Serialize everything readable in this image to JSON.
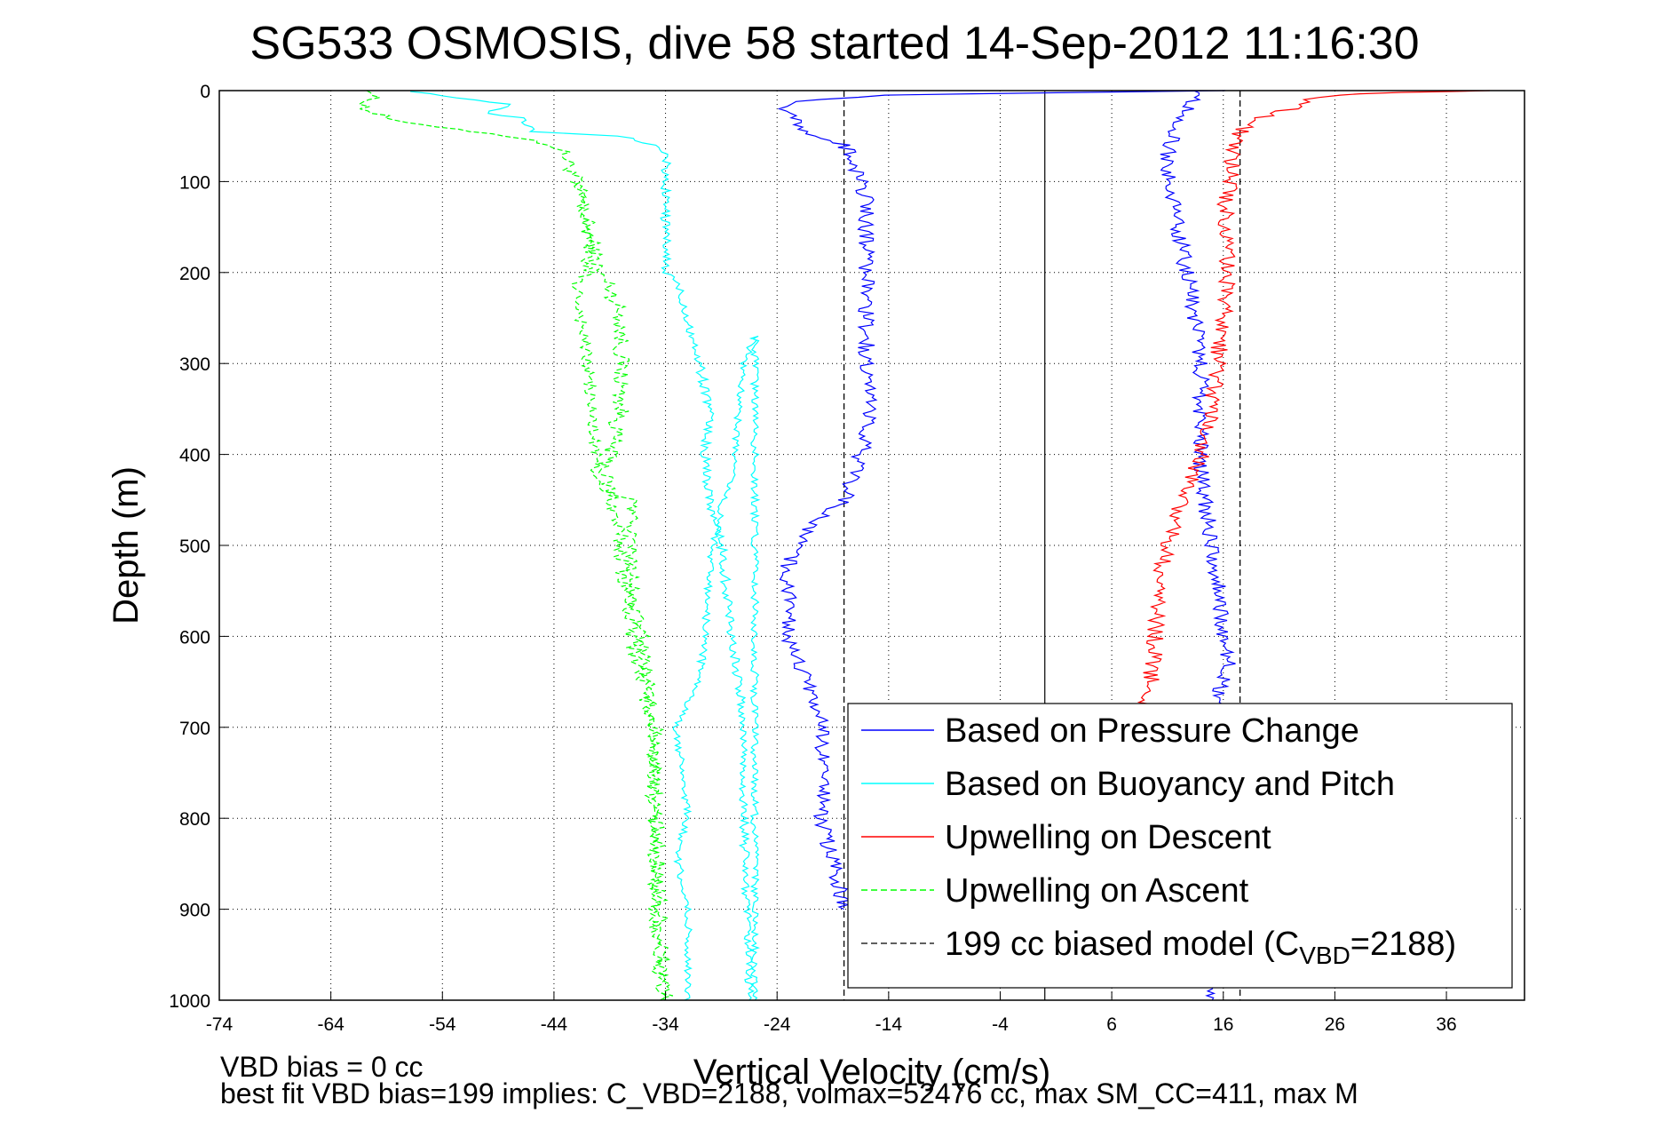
{
  "chart_data": {
    "type": "line",
    "title": "SG533 OSMOSIS, dive 58 started 14-Sep-2012 11:16:30",
    "xlabel": "Vertical Velocity (cm/s)",
    "ylabel": "Depth (m)",
    "xlim": [
      -74,
      43
    ],
    "ylim": [
      0,
      1000
    ],
    "y_reversed": true,
    "grid": true,
    "legend_position": "bottom-right",
    "x_ticks": [
      -74,
      -64,
      -54,
      -44,
      -34,
      -24,
      -14,
      -4,
      6,
      16,
      26,
      36
    ],
    "y_ticks": [
      0,
      100,
      200,
      300,
      400,
      500,
      600,
      700,
      800,
      900,
      1000
    ],
    "series": [
      {
        "name": "Based on Pressure Change",
        "color": "#0000ff",
        "style": "solid",
        "descent": {
          "x": [
            16,
            3,
            -15,
            -22,
            -24,
            -22,
            -21,
            -18,
            -17,
            -16,
            -16,
            -16,
            -15.5,
            -16,
            -17,
            -18,
            -21,
            -23,
            -23,
            -23,
            -22,
            -21,
            -20,
            -20,
            -18
          ],
          "y": [
            0,
            2,
            5,
            12,
            20,
            35,
            50,
            60,
            80,
            120,
            200,
            300,
            350,
            380,
            420,
            450,
            480,
            520,
            560,
            600,
            630,
            660,
            700,
            800,
            900
          ]
        },
        "ascent": {
          "x": [
            14,
            13,
            12,
            11,
            11,
            12,
            12.5,
            13,
            14,
            14,
            14,
            14,
            14.5,
            15,
            15.5,
            16,
            16.5,
            16,
            15.5,
            15
          ],
          "y": [
            0,
            20,
            40,
            60,
            100,
            150,
            190,
            220,
            300,
            340,
            380,
            420,
            460,
            500,
            540,
            600,
            630,
            650,
            660,
            1000
          ]
        }
      },
      {
        "name": "Based on Buoyancy and Pitch",
        "color": "#00ffff",
        "style": "solid",
        "descent": {
          "x": [
            -57,
            -48,
            -50,
            -47,
            -46,
            -38,
            -35,
            -34,
            -34,
            -34,
            -33,
            -32,
            -31,
            -30,
            -30.5,
            -30,
            -29,
            -28,
            -27,
            -27,
            -26.5
          ],
          "y": [
            1,
            15,
            25,
            30,
            45,
            50,
            60,
            70,
            100,
            200,
            210,
            250,
            300,
            350,
            400,
            450,
            500,
            600,
            700,
            800,
            1000
          ]
        },
        "ascent": {
          "x": [
            -32,
            -32,
            -33,
            -32,
            -33,
            -31,
            -30.5,
            -30,
            -29,
            -28,
            -27,
            -26,
            -26
          ],
          "y": [
            1000,
            900,
            840,
            800,
            700,
            650,
            600,
            520,
            460,
            420,
            300,
            270,
            1000
          ]
        }
      },
      {
        "name": "Upwelling on Descent",
        "color": "#ff0000",
        "style": "solid",
        "x": [
          40,
          32,
          26,
          24,
          22,
          19,
          17.5,
          17,
          16.5,
          16,
          16.5,
          16,
          15.5,
          15,
          14,
          13,
          12,
          11,
          10,
          10,
          9.5,
          9
        ],
        "y": [
          0,
          2,
          5,
          10,
          20,
          30,
          45,
          60,
          100,
          150,
          200,
          250,
          300,
          350,
          400,
          430,
          460,
          500,
          550,
          600,
          650,
          680
        ]
      },
      {
        "name": "Upwelling on Ascent",
        "color": "#00ff00",
        "style": "dashed",
        "descent": {
          "x": [
            -60,
            -61,
            -58,
            -54,
            -51,
            -48,
            -44,
            -43,
            -42,
            -41,
            -40,
            -39,
            -38,
            -38,
            -38,
            -39,
            -39.5,
            -39,
            -38,
            -37,
            -36,
            -35,
            -35,
            -34
          ],
          "y": [
            0,
            20,
            35,
            40,
            45,
            50,
            60,
            70,
            100,
            150,
            200,
            215,
            250,
            300,
            350,
            400,
            420,
            440,
            500,
            600,
            650,
            700,
            800,
            1000
          ]
        },
        "ascent": {
          "x": [
            -42,
            -41,
            -41,
            -42,
            -41,
            -40,
            -37,
            -37,
            -36,
            -35,
            -35,
            -35,
            -34.5
          ],
          "y": [
            100,
            150,
            200,
            210,
            300,
            440,
            450,
            560,
            600,
            700,
            820,
            900,
            1000
          ]
        }
      },
      {
        "name": "199 cc biased model (C",
        "name_sub": "VBD",
        "name_suffix": "=2188)",
        "color": "#000000",
        "style": "dashed",
        "x_values": [
          -18,
          17.5
        ]
      }
    ],
    "zero_line_x": 0
  },
  "footer": {
    "line1": "VBD bias = 0 cc",
    "line2": "best fit VBD bias=199 implies: C_VBD=2188, volmax=52476 cc, max SM_CC=411, max M"
  }
}
